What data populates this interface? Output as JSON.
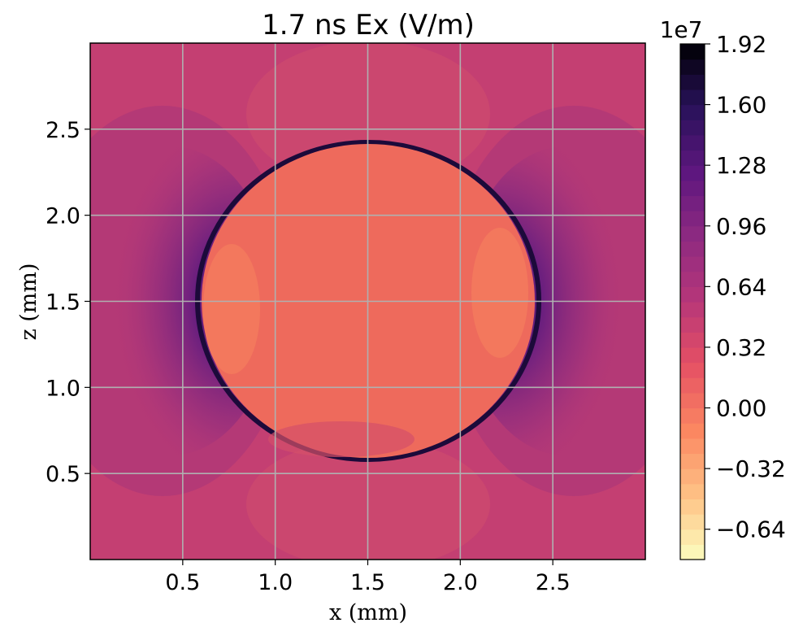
{
  "chart_data": {
    "type": "heatmap",
    "title": "1.7 ns Ex (V/m)",
    "xlabel": "x (mm)",
    "ylabel": "z (mm)",
    "xlim": [
      0.0,
      3.0
    ],
    "ylim": [
      0.0,
      3.0
    ],
    "x_ticks": [
      0.5,
      1.0,
      1.5,
      2.0,
      2.5
    ],
    "x_tick_labels": [
      "0.5",
      "1.0",
      "1.5",
      "2.0",
      "2.5"
    ],
    "y_ticks": [
      0.5,
      1.0,
      1.5,
      2.0,
      2.5
    ],
    "y_tick_labels": [
      "0.5",
      "1.0",
      "1.5",
      "2.0",
      "2.5"
    ],
    "grid": true,
    "colormap": "magma_r",
    "colorbar": {
      "scale_label": "1e7",
      "range": [
        -0.8,
        1.92
      ],
      "ticks": [
        1.92,
        1.6,
        1.28,
        0.96,
        0.64,
        0.32,
        0.0,
        -0.32,
        -0.64
      ],
      "tick_labels": [
        "1.92",
        "1.60",
        "1.28",
        "0.96",
        "0.64",
        "0.32",
        "0.00",
        "−0.32",
        "−0.64"
      ],
      "levels": 34
    },
    "features": {
      "background_level": 0.42,
      "sphere_center": [
        1.5,
        1.5
      ],
      "sphere_radii": [
        0.89,
        0.91
      ],
      "sphere_interior_level": 0.02,
      "edge_peak_level": 1.92
    }
  }
}
